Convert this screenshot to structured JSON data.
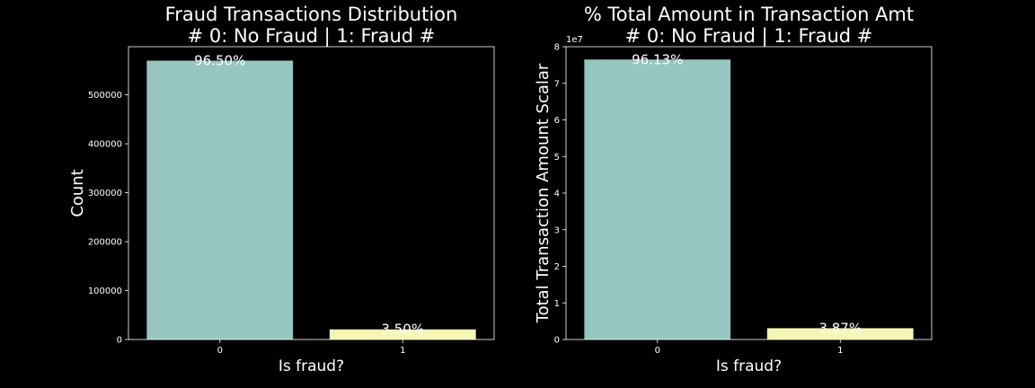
{
  "chart_data": [
    {
      "type": "bar",
      "title": "Fraud Transactions Distribution\n# 0: No Fraud | 1: Fraud #",
      "xlabel": "Is fraud?",
      "ylabel": "Count",
      "categories": [
        "0",
        "1"
      ],
      "values": [
        569877,
        20663
      ],
      "data_labels": [
        "96.50%",
        "3.50%"
      ],
      "colors": [
        "#96c6c0",
        "#f6f6b4"
      ],
      "ylim": [
        0,
        598371
      ],
      "yticks": [
        0,
        100000,
        200000,
        300000,
        400000,
        500000
      ],
      "ytick_labels": [
        "0",
        "100000",
        "200000",
        "300000",
        "400000",
        "500000"
      ],
      "y_offset_label": "",
      "grid": false,
      "legend": "none"
    },
    {
      "type": "bar",
      "title": "% Total Amount in Transaction Amt\n# 0: No Fraud | 1: Fraud #",
      "xlabel": "Is fraud?",
      "ylabel": "Total Transaction Amount Scalar",
      "categories": [
        "0",
        "1"
      ],
      "values": [
        76500000,
        3080000
      ],
      "data_labels": [
        "96.13%",
        "3.87%"
      ],
      "colors": [
        "#96c6c0",
        "#f6f6b4"
      ],
      "ylim": [
        0,
        80000000
      ],
      "yticks": [
        0,
        10000000,
        20000000,
        30000000,
        40000000,
        50000000,
        60000000,
        70000000,
        80000000
      ],
      "ytick_labels": [
        "0",
        "1",
        "2",
        "3",
        "4",
        "5",
        "6",
        "7",
        "8"
      ],
      "y_offset_label": "1e7",
      "grid": false,
      "legend": "none"
    }
  ]
}
